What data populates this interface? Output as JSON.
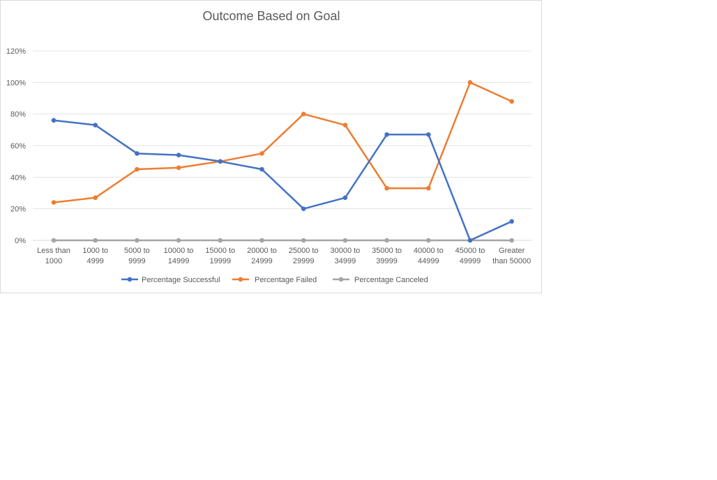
{
  "chart_data": {
    "type": "line",
    "title": "Outcome Based on Goal",
    "xlabel": "",
    "ylabel": "",
    "ylim": [
      0,
      1.2
    ],
    "y_ticks": [
      "0%",
      "20%",
      "40%",
      "60%",
      "80%",
      "100%",
      "120%"
    ],
    "y_tick_values": [
      0,
      0.2,
      0.4,
      0.6,
      0.8,
      1.0,
      1.2
    ],
    "grid": true,
    "legend_position": "bottom",
    "categories": [
      [
        "Less than",
        "1000"
      ],
      [
        "1000 to",
        "4999"
      ],
      [
        "5000 to",
        "9999"
      ],
      [
        "10000 to",
        "14999"
      ],
      [
        "15000 to",
        "19999"
      ],
      [
        "20000 to",
        "24999"
      ],
      [
        "25000 to",
        "29999"
      ],
      [
        "30000 to",
        "34999"
      ],
      [
        "35000 to",
        "39999"
      ],
      [
        "40000 to",
        "44999"
      ],
      [
        "45000 to",
        "49999"
      ],
      [
        "Greater",
        "than 50000"
      ]
    ],
    "series": [
      {
        "name": "Percentage Successful",
        "color": "#4472c4",
        "values": [
          0.76,
          0.73,
          0.55,
          0.54,
          0.5,
          0.45,
          0.2,
          0.27,
          0.67,
          0.67,
          0.0,
          0.12
        ]
      },
      {
        "name": "Percentage Failed",
        "color": "#ed7d31",
        "values": [
          0.24,
          0.27,
          0.45,
          0.46,
          0.5,
          0.55,
          0.8,
          0.73,
          0.33,
          0.33,
          1.0,
          0.88
        ]
      },
      {
        "name": "Percentage Canceled",
        "color": "#a5a5a5",
        "values": [
          0,
          0,
          0,
          0,
          0,
          0,
          0,
          0,
          0,
          0,
          0,
          0
        ]
      }
    ]
  }
}
